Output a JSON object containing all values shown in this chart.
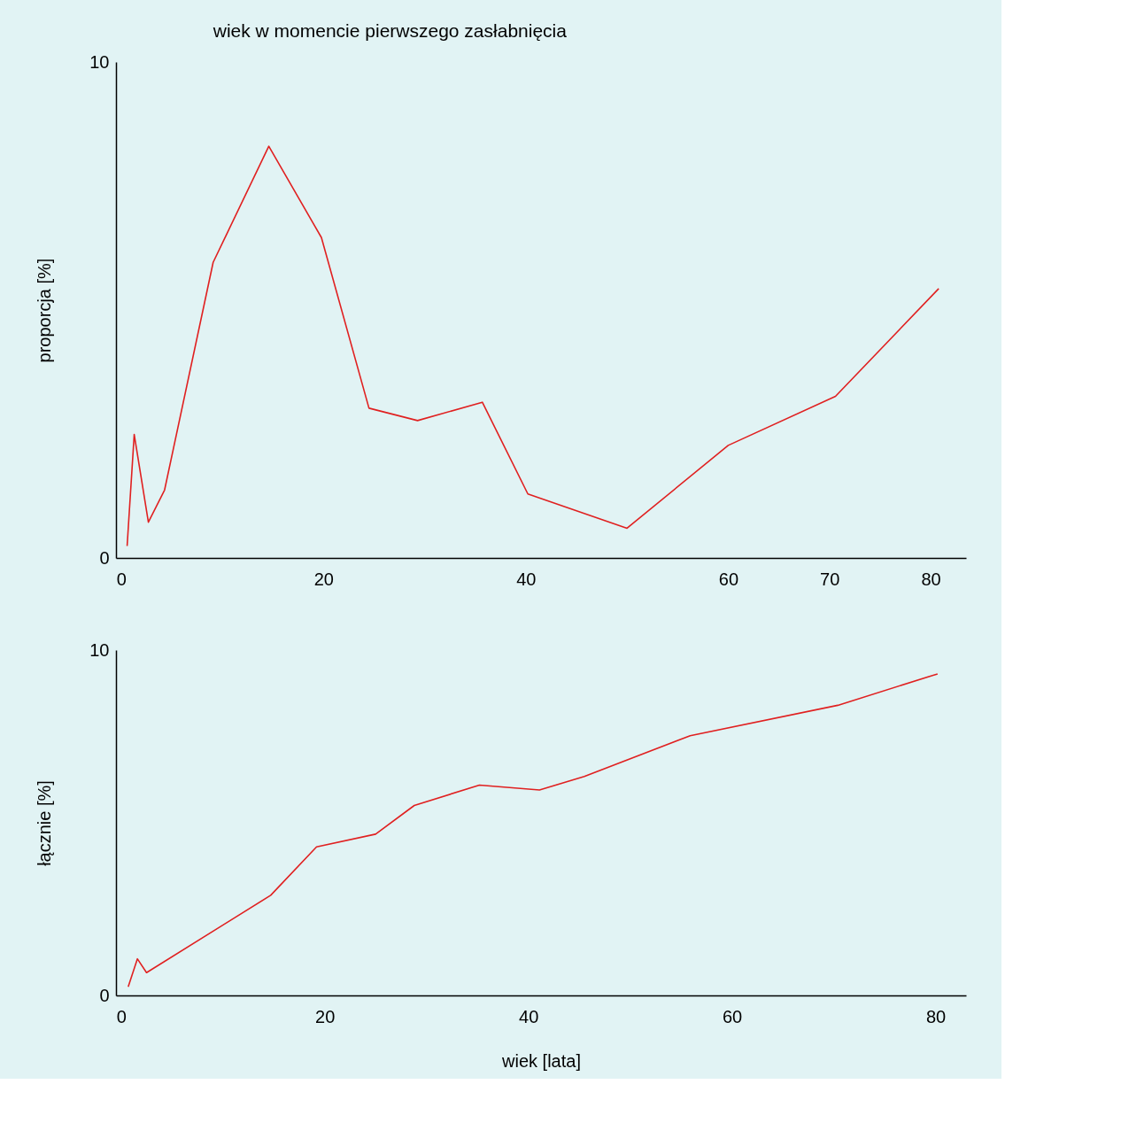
{
  "chart_data": [
    {
      "type": "line",
      "title": "wiek w momencie pierwszego zasłabnięcia",
      "ylabel": "proporcja [%]",
      "x": [
        0.6,
        1.3,
        2.7,
        4.3,
        9.1,
        14.6,
        19.8,
        24.5,
        29.3,
        35.7,
        40.2,
        50.0,
        60.0,
        70.6,
        80.8
      ],
      "series": [
        {
          "color": "#e02020",
          "values": [
            0.24,
            2.49,
            0.72,
            1.37,
            5.96,
            8.3,
            6.46,
            3.02,
            2.77,
            3.14,
            1.29,
            0.6,
            2.27,
            3.26,
            5.43
          ]
        }
      ],
      "xlim": [
        -0.5,
        83.5
      ],
      "ylim": [
        0,
        10
      ],
      "xticks": [
        0,
        20,
        40,
        60,
        70,
        80
      ],
      "yticks": [
        0,
        10
      ],
      "grid": false,
      "marker": "none",
      "line_style": "solid"
    },
    {
      "type": "line",
      "xlabel": "wiek [lata]",
      "ylabel": "łącznie [%]",
      "x": [
        0.7,
        1.6,
        2.5,
        14.7,
        19.2,
        25.0,
        28.8,
        35.2,
        41.1,
        45.5,
        55.9,
        70.4,
        80.2
      ],
      "series": [
        {
          "color": "#e02020",
          "values": [
            0.25,
            1.06,
            0.66,
            2.9,
            4.3,
            4.67,
            5.5,
            6.09,
            5.95,
            6.34,
            7.52,
            8.4,
            9.31
          ]
        }
      ],
      "xlim": [
        -0.5,
        83
      ],
      "ylim": [
        0,
        10
      ],
      "xticks": [
        0,
        20,
        40,
        60,
        80
      ],
      "yticks": [
        0,
        10
      ],
      "grid": false,
      "marker": "none",
      "line_style": "solid"
    }
  ]
}
